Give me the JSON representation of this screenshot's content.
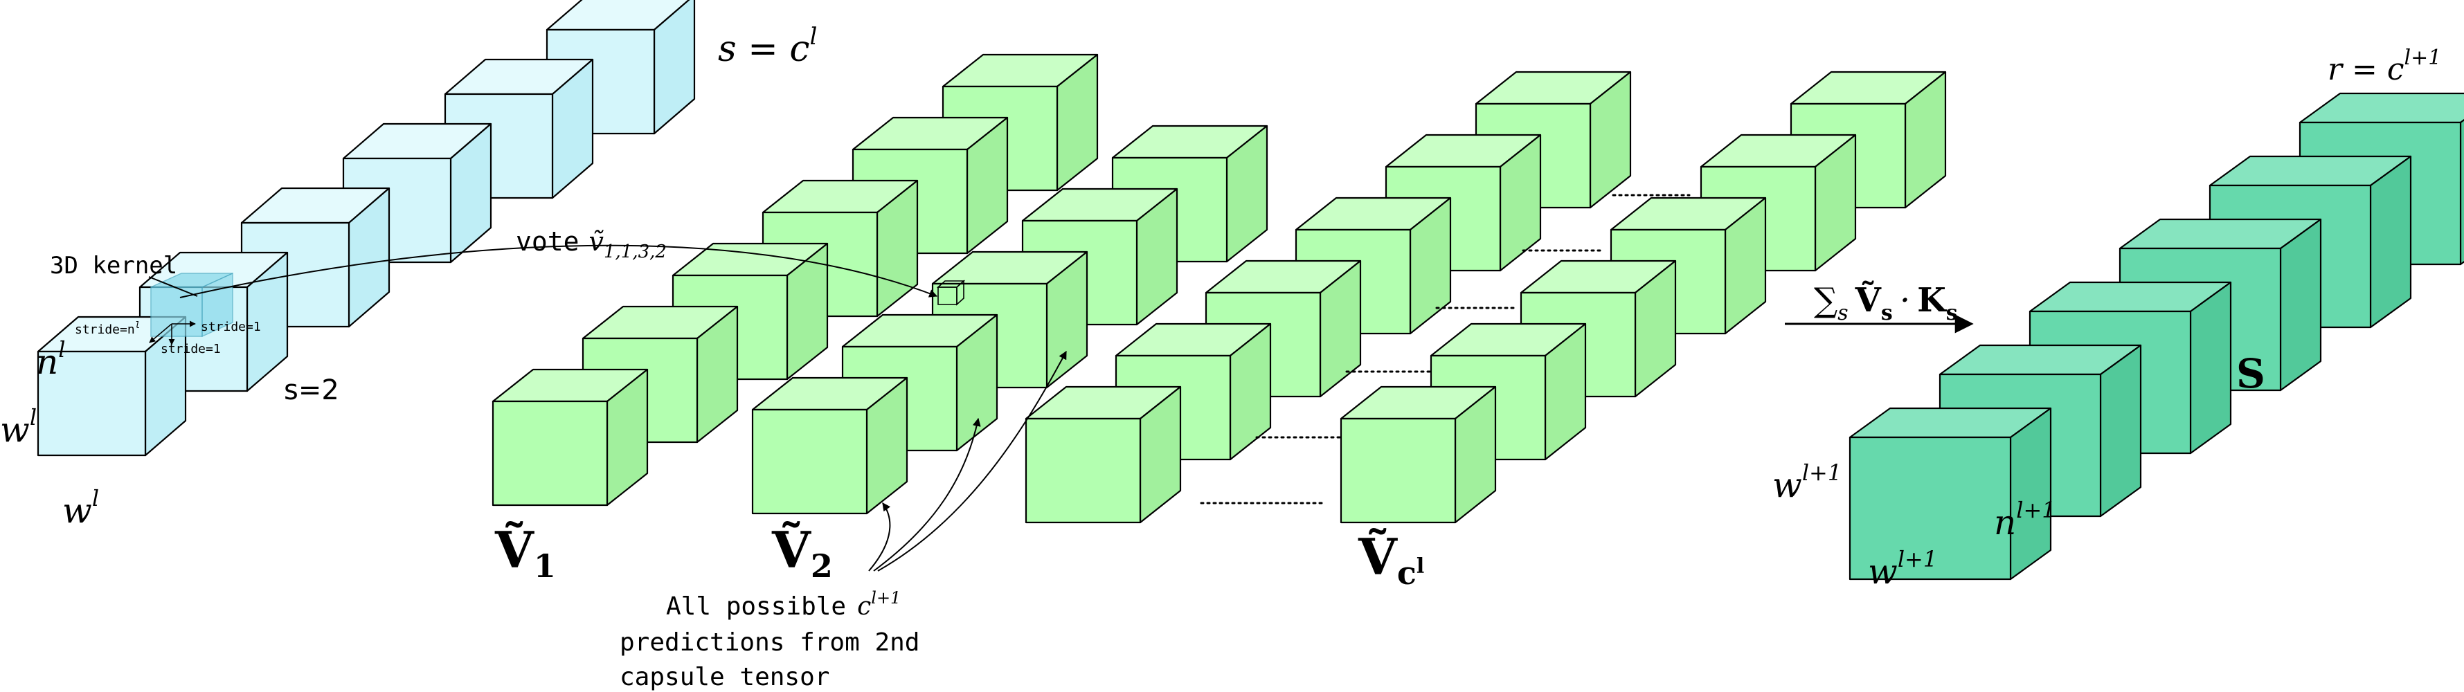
{
  "colors": {
    "input_front": "#d4f6fb",
    "input_top": "#e4fafd",
    "input_side": "#bfeef6",
    "vote_front": "#b3ffb0",
    "vote_top": "#c9ffc6",
    "vote_side": "#a1f09d",
    "out_front": "#66d9ac",
    "out_top": "#86e4bf",
    "out_side": "#52c99a",
    "kernel": "#8ad9ea"
  },
  "input": {
    "label_s": "s = c",
    "label_s_sup": "l",
    "kernel_label": "3D kernel",
    "stride_n": "stride=n",
    "stride_n_sup": "l",
    "stride_1a": "stride=1",
    "stride_1b": "stride=1",
    "n_label": "n",
    "n_sup": "l",
    "w_left": "w",
    "w_left_sup": "l",
    "w_bottom": "w",
    "w_bottom_sup": "l",
    "s2_label": "s=2"
  },
  "votes": {
    "vote_label": "vote",
    "vote_symbol": "ṽ",
    "vote_sub": "1,1,3,2",
    "v1": "Ṽ",
    "v1_sub": "1",
    "v2": "Ṽ",
    "v2_sub": "2",
    "vc": "Ṽ",
    "vc_sub": "c",
    "vc_sub_sup": "l",
    "caption_line1": "All possible",
    "caption_c": "c",
    "caption_c_sup": "l+1",
    "caption_line2": "predictions from 2nd",
    "caption_line3": "capsule tensor"
  },
  "operation": {
    "sum": "∑",
    "sum_sub": "s",
    "v": "Ṽ",
    "v_sub": "s",
    "dot": "·",
    "k": "K",
    "k_sub": "s"
  },
  "output": {
    "r_label": "r = c",
    "r_sup": "l+1",
    "s_label": "S",
    "w_left": "w",
    "w_left_sup": "l+1",
    "w_bottom": "w",
    "w_bottom_sup": "l+1",
    "n_label": "n",
    "n_sup": "l+1"
  }
}
